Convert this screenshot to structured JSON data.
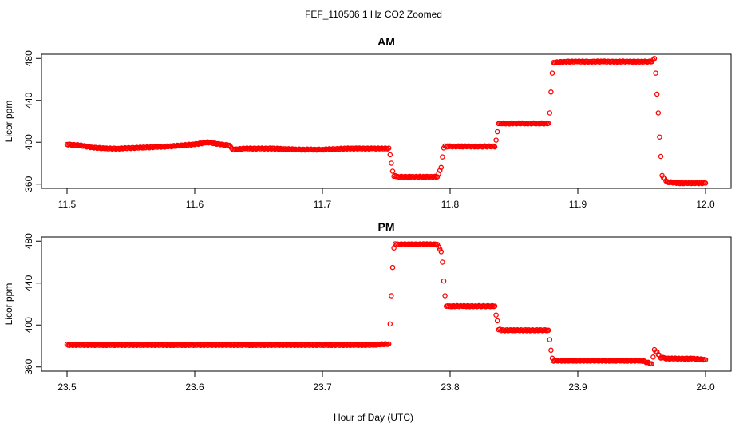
{
  "chart_data": {
    "type": "scatter",
    "title": "FEF_110506  1 Hz CO2 Zoomed",
    "xlabel": "Hour of Day (UTC)",
    "marker": "open-circle",
    "color": "#ff0000",
    "panels": [
      {
        "title": "AM",
        "ylabel": "Licor ppm",
        "xlim": [
          11.48,
          12.02
        ],
        "ylim": [
          356,
          484
        ],
        "xticks": [
          11.5,
          11.6,
          11.7,
          11.8,
          11.9,
          12.0
        ],
        "xtick_labels": [
          "11.5",
          "11.6",
          "11.7",
          "11.8",
          "11.9",
          "12.0"
        ],
        "yticks": [
          360,
          400,
          440,
          480
        ],
        "ytick_labels": [
          "360",
          "400",
          "440",
          "480"
        ],
        "series": [
          {
            "x": [
              11.5,
              11.51,
              11.52,
              11.53,
              11.54,
              11.56,
              11.58,
              11.6,
              11.61,
              11.62,
              11.627,
              11.63,
              11.64,
              11.66,
              11.68,
              11.7,
              11.72,
              11.74,
              11.752,
              11.753,
              11.754,
              11.755,
              11.756,
              11.76,
              11.77,
              11.78,
              11.79,
              11.793,
              11.794,
              11.795,
              11.796,
              11.8,
              11.81,
              11.82,
              11.835,
              11.836,
              11.837,
              11.838,
              11.84,
              11.85,
              11.86,
              11.877,
              11.878,
              11.879,
              11.88,
              11.881,
              11.89,
              11.9,
              11.91,
              11.92,
              11.93,
              11.94,
              11.95,
              11.958,
              11.96,
              11.961,
              11.962,
              11.963,
              11.964,
              11.966,
              11.97,
              11.98,
              11.99,
              12.0
            ],
            "y": [
              398,
              397,
              395,
              394,
              394,
              395,
              396,
              398,
              400,
              398,
              397,
              393,
              394,
              394,
              393,
              393,
              394,
              394,
              394,
              388,
              380,
              372,
              368,
              367,
              367,
              367,
              367,
              376,
              386,
              395,
              396,
              396,
              396,
              396,
              396,
              402,
              410,
              418,
              418,
              418,
              418,
              418,
              428,
              448,
              466,
              476,
              477,
              477,
              477,
              477,
              477,
              477,
              477,
              477,
              480,
              466,
              446,
              428,
              405,
              368,
              362,
              361,
              361,
              361
            ]
          }
        ]
      },
      {
        "title": "PM",
        "ylabel": "Licor ppm",
        "xlim": [
          23.48,
          24.02
        ],
        "ylim": [
          356,
          484
        ],
        "xticks": [
          23.5,
          23.6,
          23.7,
          23.8,
          23.9,
          24.0
        ],
        "xtick_labels": [
          "23.5",
          "23.6",
          "23.7",
          "23.8",
          "23.9",
          "24.0"
        ],
        "yticks": [
          360,
          400,
          440,
          480
        ],
        "ytick_labels": [
          "360",
          "400",
          "440",
          "480"
        ],
        "series": [
          {
            "x": [
              23.5,
              23.52,
              23.54,
              23.56,
              23.58,
              23.6,
              23.62,
              23.64,
              23.66,
              23.68,
              23.7,
              23.72,
              23.74,
              23.752,
              23.753,
              23.754,
              23.755,
              23.756,
              23.757,
              23.76,
              23.77,
              23.78,
              23.79,
              23.793,
              23.794,
              23.795,
              23.796,
              23.797,
              23.8,
              23.81,
              23.82,
              23.835,
              23.836,
              23.837,
              23.838,
              23.84,
              23.85,
              23.86,
              23.877,
              23.878,
              23.879,
              23.88,
              23.881,
              23.89,
              23.9,
              23.91,
              23.92,
              23.93,
              23.94,
              23.95,
              23.958,
              23.96,
              23.962,
              23.965,
              23.97,
              23.98,
              23.99,
              24.0
            ],
            "y": [
              381,
              381,
              381,
              381,
              381,
              381,
              381,
              381,
              381,
              381,
              381,
              381,
              381,
              382,
              401,
              428,
              455,
              474,
              477,
              477,
              477,
              477,
              477,
              470,
              460,
              442,
              428,
              418,
              418,
              418,
              418,
              418,
              410,
              404,
              396,
              395,
              395,
              395,
              395,
              386,
              376,
              368,
              366,
              366,
              366,
              366,
              366,
              366,
              366,
              366,
              363,
              376,
              374,
              369,
              368,
              368,
              368,
              367
            ]
          }
        ]
      }
    ]
  }
}
